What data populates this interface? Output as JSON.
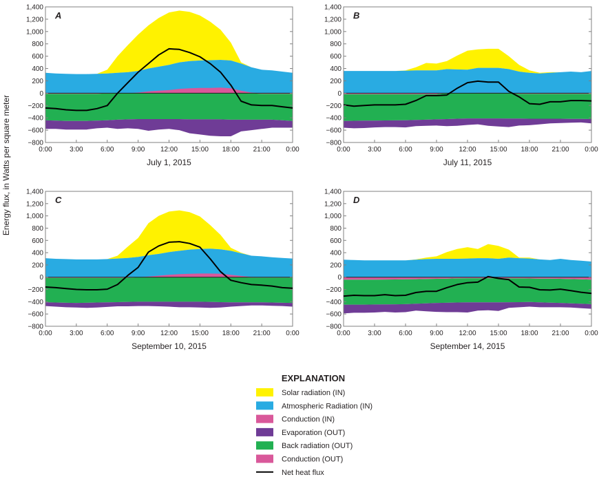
{
  "figure": {
    "y_axis_label": "Energy flux, in Watts per square meter"
  },
  "legend": {
    "title": "EXPLANATION",
    "items": [
      {
        "key": "solar",
        "label": "Solar radiation (IN)",
        "color": "#FFF200",
        "kind": "box"
      },
      {
        "key": "atm",
        "label": "Atmospheric Radiation (IN)",
        "color": "#29ABE2",
        "kind": "box"
      },
      {
        "key": "cond_in",
        "label": "Conduction (IN)",
        "color": "#D9589A",
        "kind": "box"
      },
      {
        "key": "evap",
        "label": "Evaporation (OUT)",
        "color": "#6F3C96",
        "kind": "box"
      },
      {
        "key": "back",
        "label": "Back radiation (OUT)",
        "color": "#22B052",
        "kind": "box"
      },
      {
        "key": "cond_out",
        "label": "Conduction (OUT)",
        "color": "#D9589A",
        "kind": "box"
      },
      {
        "key": "net",
        "label": "Net heat flux",
        "color": "#000000",
        "kind": "line"
      }
    ]
  },
  "chart_data": [
    {
      "type": "area",
      "panel": "A",
      "xlabel": "July 1, 2015",
      "ylabel": "Energy flux, in Watts per square meter",
      "ylim": [
        -800,
        1400
      ],
      "grid": false,
      "y_tick_labels": [
        "1,400",
        "1,200",
        "1,000",
        "800",
        "600",
        "400",
        "200",
        "0",
        "−200",
        "−400",
        "−600",
        "−800"
      ],
      "y_ticks": [
        1400,
        1200,
        1000,
        800,
        600,
        400,
        200,
        0,
        -200,
        -400,
        -600,
        -800
      ],
      "x_tick_labels": [
        "0:00",
        "3:00",
        "6:00",
        "9:00",
        "12:00",
        "15:00",
        "18:00",
        "21:00",
        "0:00"
      ],
      "x_hours": [
        0,
        1,
        2,
        3,
        4,
        5,
        6,
        7,
        8,
        9,
        10,
        11,
        12,
        13,
        14,
        15,
        16,
        17,
        18,
        19,
        20,
        21,
        22,
        23,
        24
      ],
      "series": {
        "cond_in": [
          0,
          0,
          0,
          0,
          0,
          0,
          0,
          0,
          0,
          10,
          30,
          40,
          50,
          70,
          80,
          85,
          85,
          90,
          80,
          40,
          10,
          0,
          0,
          0,
          0
        ],
        "atm": [
          330,
          320,
          315,
          310,
          310,
          315,
          320,
          330,
          340,
          350,
          370,
          390,
          410,
          430,
          440,
          445,
          450,
          450,
          450,
          440,
          410,
          380,
          370,
          350,
          330
        ],
        "solar": [
          0,
          0,
          0,
          0,
          0,
          0,
          60,
          270,
          440,
          590,
          700,
          790,
          850,
          840,
          800,
          730,
          625,
          490,
          290,
          20,
          0,
          0,
          0,
          0,
          0
        ],
        "cond_out": [
          -10,
          -10,
          -10,
          -10,
          -10,
          -10,
          -5,
          0,
          0,
          0,
          0,
          0,
          0,
          0,
          0,
          0,
          0,
          0,
          0,
          0,
          -5,
          -10,
          -10,
          -10,
          -10
        ],
        "back": [
          -430,
          -435,
          -440,
          -440,
          -440,
          -435,
          -435,
          -430,
          -425,
          -420,
          -420,
          -420,
          -420,
          -420,
          -425,
          -425,
          -425,
          -425,
          -430,
          -430,
          -425,
          -420,
          -420,
          -430,
          -440
        ],
        "evap": [
          -140,
          -135,
          -140,
          -140,
          -140,
          -125,
          -120,
          -150,
          -145,
          -160,
          -190,
          -170,
          -160,
          -180,
          -225,
          -245,
          -265,
          -275,
          -270,
          -190,
          -170,
          -150,
          -130,
          -120,
          -110
        ],
        "net": [
          -240,
          -250,
          -270,
          -280,
          -280,
          -250,
          -200,
          0,
          170,
          340,
          480,
          620,
          720,
          710,
          660,
          590,
          480,
          340,
          130,
          -130,
          -190,
          -200,
          -200,
          -220,
          -240
        ]
      }
    },
    {
      "type": "area",
      "panel": "B",
      "xlabel": "July 11, 2015",
      "ylabel": "Energy flux, in Watts per square meter",
      "ylim": [
        -800,
        1400
      ],
      "grid": false,
      "y_tick_labels": [
        "1,400",
        "1,200",
        "1,000",
        "800",
        "600",
        "400",
        "200",
        "0",
        "−200",
        "−400",
        "−600",
        "−800"
      ],
      "y_ticks": [
        1400,
        1200,
        1000,
        800,
        600,
        400,
        200,
        0,
        -200,
        -400,
        -600,
        -800
      ],
      "x_tick_labels": [
        "0:00",
        "3:00",
        "6:00",
        "9:00",
        "12:00",
        "15:00",
        "18:00",
        "21:00",
        "0:00"
      ],
      "x_hours": [
        0,
        1,
        2,
        3,
        4,
        5,
        6,
        7,
        8,
        9,
        10,
        11,
        12,
        13,
        14,
        15,
        16,
        17,
        18,
        19,
        20,
        21,
        22,
        23,
        24
      ],
      "series": {
        "cond_in": [
          0,
          0,
          0,
          0,
          0,
          0,
          0,
          0,
          0,
          0,
          0,
          0,
          0,
          5,
          5,
          5,
          0,
          0,
          0,
          0,
          0,
          0,
          0,
          0,
          0
        ],
        "atm": [
          360,
          360,
          360,
          360,
          360,
          360,
          365,
          370,
          370,
          370,
          390,
          385,
          380,
          405,
          405,
          405,
          390,
          350,
          330,
          320,
          330,
          340,
          350,
          340,
          360
        ],
        "solar": [
          0,
          0,
          0,
          0,
          0,
          0,
          5,
          50,
          120,
          110,
          130,
          225,
          310,
          300,
          310,
          310,
          210,
          110,
          40,
          10,
          10,
          0,
          0,
          0,
          0
        ],
        "cond_out": [
          -15,
          -15,
          -15,
          -15,
          -15,
          -15,
          -15,
          -15,
          -15,
          -15,
          0,
          0,
          0,
          0,
          0,
          0,
          0,
          -10,
          -10,
          -10,
          -10,
          -10,
          -10,
          -10,
          -10
        ],
        "back": [
          -435,
          -433,
          -431,
          -430,
          -428,
          -427,
          -425,
          -420,
          -415,
          -410,
          -420,
          -415,
          -410,
          -410,
          -410,
          -410,
          -412,
          -403,
          -405,
          -405,
          -405,
          -405,
          -407,
          -408,
          -410
        ],
        "evap": [
          -110,
          -122,
          -119,
          -110,
          -107,
          -108,
          -115,
          -100,
          -100,
          -100,
          -115,
          -115,
          -105,
          -95,
          -120,
          -130,
          -138,
          -112,
          -105,
          -90,
          -75,
          -70,
          -63,
          -57,
          -70
        ],
        "net": [
          -190,
          -210,
          -200,
          -190,
          -190,
          -190,
          -180,
          -120,
          -40,
          -40,
          -30,
          80,
          170,
          195,
          180,
          180,
          30,
          -60,
          -170,
          -180,
          -140,
          -140,
          -120,
          -120,
          -125
        ]
      }
    },
    {
      "type": "area",
      "panel": "C",
      "xlabel": "September 10, 2015",
      "ylabel": "Energy flux, in Watts per square meter",
      "ylim": [
        -800,
        1400
      ],
      "grid": false,
      "y_tick_labels": [
        "1,400",
        "1,200",
        "1,000",
        "800",
        "600",
        "400",
        "200",
        "0",
        "−200",
        "−400",
        "−600",
        "−800"
      ],
      "y_ticks": [
        1400,
        1200,
        1000,
        800,
        600,
        400,
        200,
        0,
        -200,
        -400,
        -600,
        -800
      ],
      "x_tick_labels": [
        "0:00",
        "3:00",
        "6:00",
        "9:00",
        "12:00",
        "15:00",
        "18:00",
        "21:00",
        "0:00"
      ],
      "x_hours": [
        0,
        1,
        2,
        3,
        4,
        5,
        6,
        7,
        8,
        9,
        10,
        11,
        12,
        13,
        14,
        15,
        16,
        17,
        18,
        19,
        20,
        21,
        22,
        23,
        24
      ],
      "series": {
        "cond_in": [
          0,
          0,
          0,
          0,
          0,
          0,
          0,
          0,
          0,
          0,
          10,
          25,
          40,
          50,
          55,
          60,
          60,
          55,
          40,
          20,
          5,
          0,
          0,
          0,
          0
        ],
        "atm": [
          310,
          300,
          295,
          290,
          290,
          290,
          295,
          305,
          315,
          330,
          350,
          355,
          370,
          380,
          395,
          400,
          405,
          400,
          390,
          370,
          345,
          340,
          325,
          315,
          305
        ],
        "solar": [
          0,
          0,
          0,
          0,
          0,
          0,
          0,
          45,
          185,
          310,
          520,
          620,
          660,
          660,
          610,
          530,
          385,
          235,
          50,
          10,
          0,
          0,
          0,
          0,
          0
        ],
        "cond_out": [
          -10,
          -10,
          -10,
          -10,
          -10,
          -10,
          -10,
          -10,
          -10,
          0,
          0,
          0,
          0,
          0,
          0,
          0,
          0,
          0,
          0,
          0,
          -5,
          -5,
          -5,
          -5,
          -5
        ],
        "back": [
          -400,
          -403,
          -407,
          -410,
          -407,
          -403,
          -400,
          -397,
          -393,
          -400,
          -400,
          -400,
          -400,
          -400,
          -400,
          -400,
          -403,
          -407,
          -410,
          -410,
          -405,
          -405,
          -408,
          -412,
          -415
        ],
        "evap": [
          -60,
          -67,
          -73,
          -75,
          -83,
          -82,
          -75,
          -68,
          -72,
          -70,
          -70,
          -75,
          -80,
          -90,
          -90,
          -95,
          -97,
          -88,
          -70,
          -60,
          -50,
          -50,
          -52,
          -53,
          -60
        ],
        "net": [
          -160,
          -170,
          -185,
          -200,
          -205,
          -205,
          -195,
          -120,
          30,
          160,
          410,
          510,
          570,
          580,
          550,
          490,
          300,
          90,
          -50,
          -90,
          -120,
          -130,
          -145,
          -170,
          -180
        ]
      }
    },
    {
      "type": "area",
      "panel": "D",
      "xlabel": "September 14, 2015",
      "ylabel": "Energy flux, in Watts per square meter",
      "ylim": [
        -800,
        1400
      ],
      "grid": false,
      "y_tick_labels": [
        "1,400",
        "1,200",
        "1,000",
        "800",
        "600",
        "400",
        "200",
        "0",
        "−200",
        "−400",
        "−600",
        "−800"
      ],
      "y_ticks": [
        1400,
        1200,
        1000,
        800,
        600,
        400,
        200,
        0,
        -200,
        -400,
        -600,
        -800
      ],
      "x_tick_labels": [
        "0:00",
        "3:00",
        "6:00",
        "9:00",
        "12:00",
        "15:00",
        "18:00",
        "21:00",
        "0:00"
      ],
      "x_hours": [
        0,
        1,
        2,
        3,
        4,
        5,
        6,
        7,
        8,
        9,
        10,
        11,
        12,
        13,
        14,
        15,
        16,
        17,
        18,
        19,
        20,
        21,
        22,
        23,
        24
      ],
      "series": {
        "cond_in": [
          0,
          0,
          0,
          0,
          0,
          0,
          0,
          0,
          0,
          0,
          0,
          0,
          0,
          0,
          0,
          0,
          0,
          0,
          0,
          0,
          0,
          0,
          0,
          0,
          0
        ],
        "atm": [
          285,
          280,
          275,
          275,
          275,
          275,
          275,
          285,
          295,
          300,
          300,
          300,
          305,
          310,
          310,
          300,
          320,
          310,
          305,
          290,
          280,
          300,
          280,
          270,
          255
        ],
        "solar": [
          0,
          0,
          0,
          0,
          0,
          0,
          0,
          5,
          25,
          40,
          110,
          160,
          185,
          150,
          230,
          210,
          130,
          10,
          15,
          0,
          0,
          0,
          0,
          0,
          0
        ],
        "cond_out": [
          -40,
          -40,
          -40,
          -40,
          -38,
          -37,
          -35,
          -32,
          -28,
          -25,
          -22,
          -18,
          -15,
          -15,
          -15,
          -15,
          -17,
          -18,
          -20,
          -22,
          -23,
          -25,
          -30,
          -35,
          -40
        ],
        "back": [
          -410,
          -408,
          -407,
          -405,
          -405,
          -405,
          -405,
          -401,
          -399,
          -395,
          -395,
          -395,
          -395,
          -395,
          -395,
          -395,
          -391,
          -389,
          -385,
          -388,
          -392,
          -395,
          -397,
          -398,
          -400
        ],
        "evap": [
          -140,
          -132,
          -133,
          -130,
          -122,
          -133,
          -130,
          -112,
          -128,
          -145,
          -153,
          -157,
          -165,
          -135,
          -130,
          -140,
          -92,
          -83,
          -75,
          -80,
          -75,
          -70,
          -68,
          -72,
          -75
        ],
        "net": [
          -310,
          -295,
          -300,
          -300,
          -285,
          -300,
          -295,
          -250,
          -230,
          -230,
          -170,
          -120,
          -90,
          -80,
          10,
          -20,
          -40,
          -160,
          -165,
          -205,
          -210,
          -195,
          -220,
          -245,
          -265
        ]
      }
    }
  ]
}
